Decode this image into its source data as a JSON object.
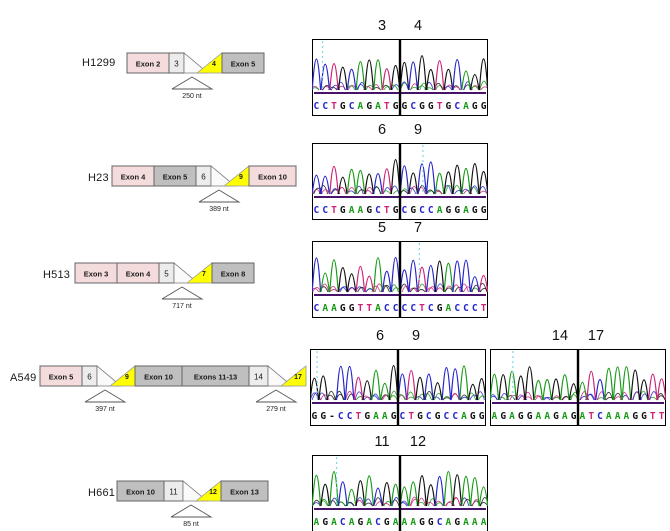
{
  "figure": {
    "rows": [
      {
        "cell_line": "H1299",
        "diagram": {
          "elements": [
            {
              "t": "exon",
              "label": "Exon 2",
              "c": "pink"
            },
            {
              "t": "num",
              "label": "3"
            },
            {
              "t": "jun",
              "label": "4"
            },
            {
              "t": "exon",
              "label": "Exon 5",
              "c": "gray"
            }
          ],
          "sizes": [
            {
              "label": "250 nt",
              "anchor": 2
            }
          ]
        },
        "panels": [
          {
            "numbers": [
              "3",
              "4"
            ],
            "sequence": "CCTGCAGATGGCGGTGCAGG",
            "dotted": 0.06
          }
        ]
      },
      {
        "cell_line": "H23",
        "diagram": {
          "elements": [
            {
              "t": "exon",
              "label": "Exon 4",
              "c": "pink"
            },
            {
              "t": "exon",
              "label": "Exon 5",
              "c": "gray"
            },
            {
              "t": "num",
              "label": "6"
            },
            {
              "t": "jun",
              "label": "9"
            },
            {
              "t": "exon",
              "label": "Exon 10",
              "c": "pink"
            }
          ],
          "sizes": [
            {
              "label": "389 nt",
              "anchor": 3
            }
          ]
        },
        "panels": [
          {
            "numbers": [
              "6",
              "9"
            ],
            "sequence": "CCTGAAGCTGCGCCAGGAGG",
            "dotted": 0.63
          }
        ]
      },
      {
        "cell_line": "H513",
        "diagram": {
          "elements": [
            {
              "t": "exon",
              "label": "Exon 3",
              "c": "pink"
            },
            {
              "t": "exon",
              "label": "Exon 4",
              "c": "pink"
            },
            {
              "t": "num",
              "label": "5"
            },
            {
              "t": "jun",
              "label": "7"
            },
            {
              "t": "exon",
              "label": "Exon 8",
              "c": "gray"
            }
          ],
          "sizes": [
            {
              "label": "717 nt",
              "anchor": 3
            }
          ]
        },
        "panels": [
          {
            "numbers": [
              "5",
              "7"
            ],
            "sequence": "CAAGGTTACCCCTCGACCCT",
            "dotted": 0.61
          }
        ]
      },
      {
        "cell_line": "A549",
        "diagram": {
          "elements": [
            {
              "t": "exon",
              "label": "Exon 5",
              "c": "pink"
            },
            {
              "t": "num",
              "label": "6"
            },
            {
              "t": "jun",
              "label": "9"
            },
            {
              "t": "exon",
              "label": "Exon 10",
              "c": "gray"
            },
            {
              "t": "exon",
              "label": "Exons 11-13",
              "c": "gray"
            },
            {
              "t": "num",
              "label": "14"
            },
            {
              "t": "jun",
              "label": "17"
            }
          ],
          "sizes": [
            {
              "label": "397 nt",
              "anchor": 2
            },
            {
              "label": "279 nt",
              "anchor": 6
            }
          ]
        },
        "panels": [
          {
            "numbers": [
              "6",
              "9"
            ],
            "sequence": "GG-CCTGAAGCTGCGCCAGG",
            "dotted": 0.04
          },
          {
            "numbers": [
              "14",
              "17"
            ],
            "sequence": "AGAGGAAGAGATCAAAGGTT",
            "dotted": 0.13
          }
        ]
      },
      {
        "cell_line": "H661",
        "diagram": {
          "elements": [
            {
              "t": "exon",
              "label": "Exon 10",
              "c": "gray"
            },
            {
              "t": "num",
              "label": "11"
            },
            {
              "t": "jun",
              "label": "12"
            },
            {
              "t": "exon",
              "label": "Exon 13",
              "c": "gray"
            }
          ],
          "sizes": [
            {
              "label": "85 nt",
              "anchor": 2
            }
          ]
        },
        "panels": [
          {
            "numbers": [
              "11",
              "12"
            ],
            "sequence": "AGACAGACGAAAGGCAGAAA",
            "dotted": 0.14
          }
        ]
      }
    ],
    "colors": {
      "exon_pink": "#f3dcdb",
      "exon_gray": "#bfbfbf",
      "num_box": "#ececec",
      "junction_yellow": "#ffff00",
      "base_A": "#169a16",
      "base_C": "#2424cc",
      "base_G": "#111111",
      "base_T": "#cc2277",
      "base_gap": "#111111",
      "trace_baseline": "#471269",
      "dotted_marker": "#7fd8ea",
      "junction_line": "#000000"
    }
  }
}
